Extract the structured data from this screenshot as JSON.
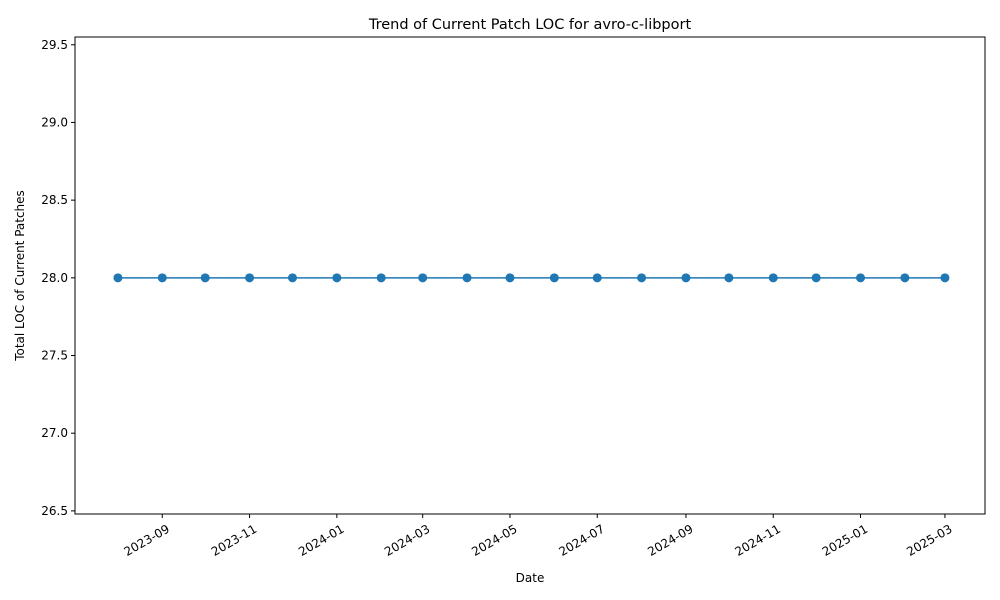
{
  "chart_data": {
    "type": "line",
    "title": "Trend of Current Patch LOC for avro-c-libport",
    "xlabel": "Date",
    "ylabel": "Total LOC of Current Patches",
    "x_type": "date",
    "x_range": [
      "2023-07-02",
      "2025-03-29"
    ],
    "ylim": [
      26.48,
      29.55
    ],
    "grid": false,
    "legend": "none",
    "line_color": "#1f77b4",
    "x_ticks": [
      "2023-09-01",
      "2023-11-01",
      "2024-01-01",
      "2024-03-01",
      "2024-05-01",
      "2024-07-01",
      "2024-09-01",
      "2024-11-01",
      "2025-01-01",
      "2025-03-01"
    ],
    "x_tick_labels": [
      "2023-09",
      "2023-11",
      "2024-01",
      "2024-03",
      "2024-05",
      "2024-07",
      "2024-09",
      "2024-11",
      "2025-01",
      "2025-03"
    ],
    "y_ticks": [
      26.5,
      27.0,
      27.5,
      28.0,
      28.5,
      29.0,
      29.5
    ],
    "y_tick_labels": [
      "26.5",
      "27.0",
      "27.5",
      "28.0",
      "28.5",
      "29.0",
      "29.5"
    ],
    "series": [
      {
        "x": [
          "2023-08-01",
          "2023-09-01",
          "2023-10-01",
          "2023-11-01",
          "2023-12-01",
          "2024-01-01",
          "2024-02-01",
          "2024-03-01",
          "2024-04-01",
          "2024-05-01",
          "2024-06-01",
          "2024-07-01",
          "2024-08-01",
          "2024-09-01",
          "2024-10-01",
          "2024-11-01",
          "2024-12-01",
          "2025-01-01",
          "2025-02-01",
          "2025-03-01"
        ],
        "y": [
          28,
          28,
          28,
          28,
          28,
          28,
          28,
          28,
          28,
          28,
          28,
          28,
          28,
          28,
          28,
          28,
          28,
          28,
          28,
          28
        ]
      }
    ]
  }
}
